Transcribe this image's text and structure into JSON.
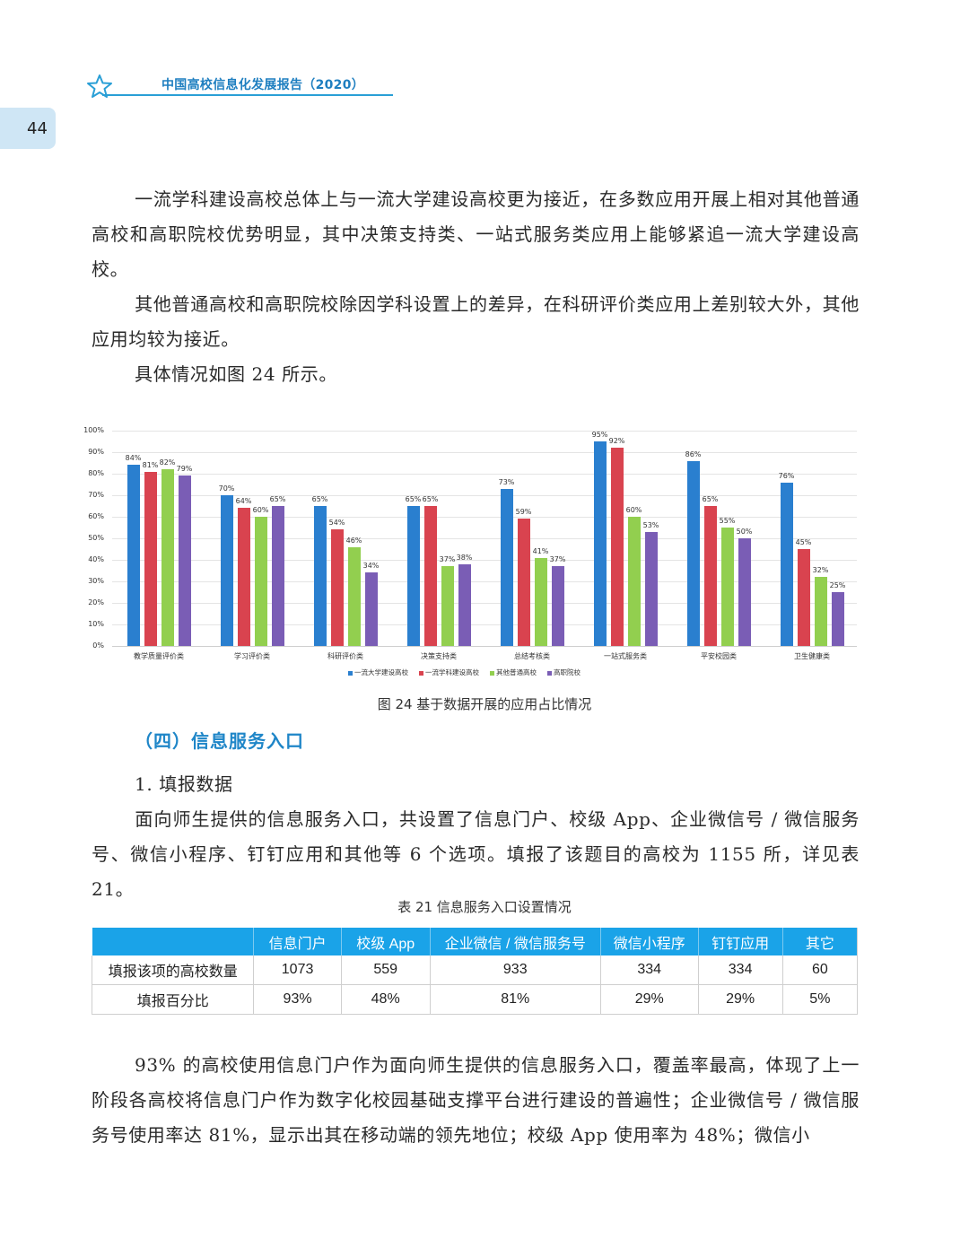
{
  "header": {
    "title": "中国高校信息化发展报告（2020）",
    "page_number": "44",
    "icon": "star-outline-icon",
    "accent_color": "#2a9fd6"
  },
  "paragraphs": {
    "p1": "一流学科建设高校总体上与一流大学建设高校更为接近，在多数应用开展上相对其他普通高校和高职院校优势明显，其中决策支持类、一站式服务类应用上能够紧追一流大学建设高校。",
    "p2": "其他普通高校和高职院校除因学科设置上的差异，在科研评价类应用上差别较大外，其他应用均较为接近。",
    "p3": "具体情况如图 24 所示。",
    "p4": "面向师生提供的信息服务入口，共设置了信息门户、校级 App、企业微信号 / 微信服务号、微信小程序、钉钉应用和其他等 6 个选项。填报了该题目的高校为 1155 所，详见表 21。",
    "p5": "93% 的高校使用信息门户作为面向师生提供的信息服务入口，覆盖率最高，体现了上一阶段各高校将信息门户作为数字化校园基础支撑平台进行建设的普遍性；企业微信号 / 微信服务号使用率达 81%，显示出其在移动端的领先地位；校级 App 使用率为 48%；微信小"
  },
  "figure_caption": "图 24  基于数据开展的应用占比情况",
  "section_title": "（四）信息服务入口",
  "subsection_title": "1. 填报数据",
  "chart_data": {
    "type": "bar",
    "title": "图 24  基于数据开展的应用占比情况",
    "xlabel": "",
    "ylabel": "",
    "ylim": [
      0,
      100
    ],
    "yticks": [
      "0%",
      "10%",
      "20%",
      "30%",
      "40%",
      "50%",
      "60%",
      "70%",
      "80%",
      "90%",
      "100%"
    ],
    "grid": true,
    "legend_position": "bottom",
    "categories": [
      "教学质量评价类",
      "学习评价类",
      "科研评价类",
      "决策支持类",
      "总结考核类",
      "一站式服务类",
      "平安校园类",
      "卫生健康类"
    ],
    "series": [
      {
        "name": "一流大学建设高校",
        "color": "#2a7fcf",
        "values": [
          84,
          70,
          65,
          65,
          73,
          95,
          86,
          76
        ]
      },
      {
        "name": "一流学科建设高校",
        "color": "#d9434f",
        "values": [
          81,
          64,
          54,
          65,
          59,
          92,
          65,
          45
        ]
      },
      {
        "name": "其他普通高校",
        "color": "#92cf4f",
        "values": [
          82,
          60,
          46,
          37,
          41,
          60,
          55,
          32
        ]
      },
      {
        "name": "高职院校",
        "color": "#7a5db5",
        "values": [
          79,
          65,
          34,
          38,
          37,
          53,
          50,
          25
        ]
      }
    ]
  },
  "table": {
    "caption": "表 21  信息服务入口设置情况",
    "header_color": "#1aa3e8",
    "columns": [
      "",
      "信息门户",
      "校级 App",
      "企业微信 / 微信服务号",
      "微信小程序",
      "钉钉应用",
      "其它"
    ],
    "rows": [
      [
        "填报该项的高校数量",
        "1073",
        "559",
        "933",
        "334",
        "334",
        "60"
      ],
      [
        "填报百分比",
        "93%",
        "48%",
        "81%",
        "29%",
        "29%",
        "5%"
      ]
    ]
  }
}
